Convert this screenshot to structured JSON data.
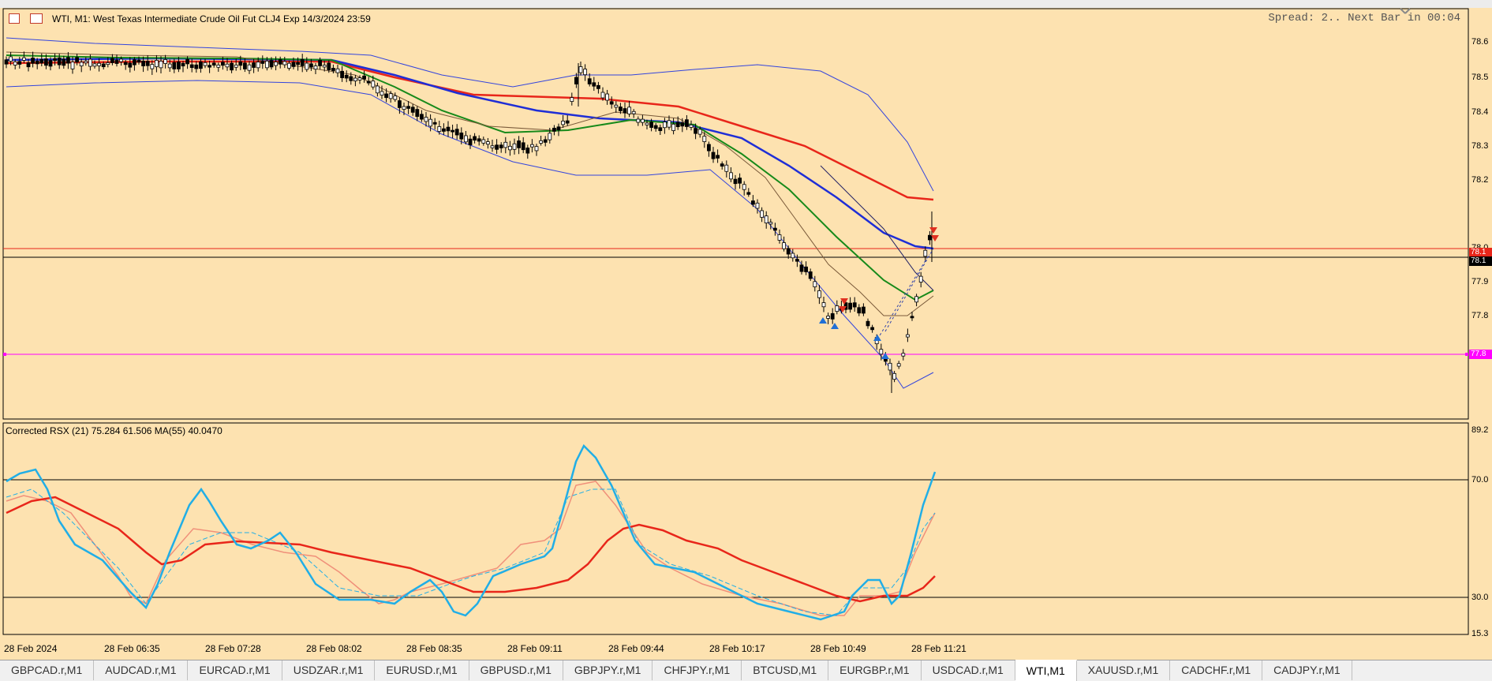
{
  "window": {
    "title": "WTI, M1:  West Texas Intermediate Crude Oil Fut CLJ4 Exp 14/3/2024 23:59",
    "spread_text": "Spread: 2.. Next Bar in 00:04"
  },
  "price_axis": {
    "ticks": [
      "78.6",
      "78.5",
      "78.4",
      "78.3",
      "78.2",
      "78.0",
      "77.9",
      "77.8"
    ],
    "flags": [
      {
        "text": "78.1",
        "color": "#e8261a"
      },
      {
        "text": "78.1",
        "color": "#000000"
      },
      {
        "text": "77.8",
        "color": "#ff00ff"
      }
    ]
  },
  "indicator": {
    "label": "Corrected RSX (21) 75.284 61.506 MA(55) 40.0470",
    "ticks": [
      "89.2",
      "70.0",
      "30.0",
      "15.3"
    ]
  },
  "time_axis": [
    "28 Feb 2024",
    "28 Feb 06:35",
    "28 Feb 07:28",
    "28 Feb 08:02",
    "28 Feb 08:35",
    "28 Feb 09:11",
    "28 Feb 09:44",
    "28 Feb 10:17",
    "28 Feb 10:49",
    "28 Feb 11:21"
  ],
  "tabs": [
    "GBPCAD.r,M1",
    "AUDCAD.r,M1",
    "EURCAD.r,M1",
    "USDZAR.r,M1",
    "EURUSD.r,M1",
    "GBPUSD.r,M1",
    "GBPJPY.r,M1",
    "CHFJPY.r,M1",
    "BTCUSD,M1",
    "EURGBP.r,M1",
    "USDCAD.r,M1",
    "WTI,M1",
    "XAUUSD.r,M1",
    "CADCHF.r,M1",
    "CADJPY.r,M1"
  ],
  "active_tab": "WTI,M1",
  "colors": {
    "background": "#fde2b0",
    "ma_red": "#e8261a",
    "ma_blue": "#1f2ed6",
    "ma_green": "#178a1a",
    "bollinger": "#3344dd",
    "rsx_cyan": "#21aee6",
    "rsx_salmon": "#f0907a",
    "level_magenta": "#ff00ff"
  }
}
